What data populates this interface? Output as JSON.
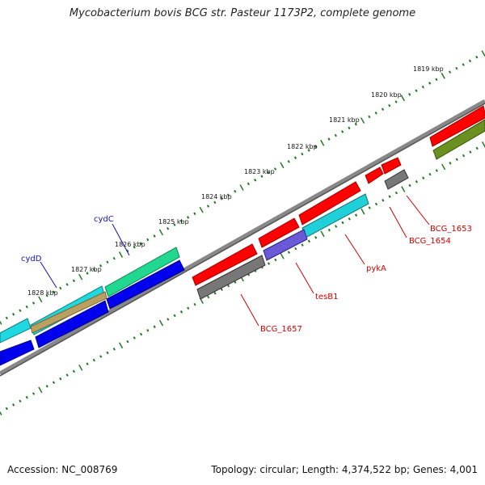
{
  "title": "Mycobacterium bovis BCG str. Pasteur 1173P2, complete genome",
  "footer": {
    "accession": "Accession: NC_008769",
    "summary": "Topology: circular; Length: 4,374,522 bp; Genes: 4,001"
  },
  "kbp_labels": [
    "1819 kbp",
    "1820 kbp",
    "1821 kbp",
    "1822 kbp",
    "1823 kbp",
    "1824 kbp",
    "1825 kbp",
    "1826 kbp",
    "1827 kbp",
    "1828 kbp"
  ],
  "gene_labels": {
    "cydC": "cydC",
    "cydD": "cydD",
    "tesB1": "tesB1",
    "pykA": "pykA",
    "BCG_1653": "BCG_1653",
    "BCG_1654": "BCG_1654",
    "BCG_1657": "BCG_1657"
  },
  "colors": {
    "backbone": "#888888",
    "tick": "#1f7a1f",
    "feature_red": "#ff0000",
    "feature_blue": "#0000ee",
    "feature_cyan": "#20d0d8",
    "feature_green": "#20d890",
    "feature_gray": "#777777",
    "feature_olive": "#6a9020",
    "feature_purple": "#6a5ad8",
    "feature_tan": "#b8a060",
    "label_red": "#d00000",
    "label_blue": "#1010c0"
  }
}
